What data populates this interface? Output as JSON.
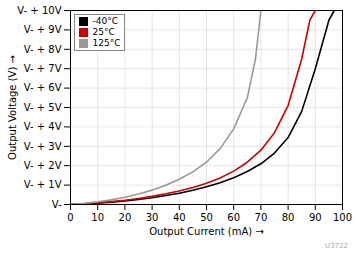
{
  "chart_data": {
    "type": "line",
    "xlabel": "Output Current (mA)",
    "ylabel": "Output Voltage (V)",
    "xlim": [
      0,
      100
    ],
    "ylim": [
      0,
      10
    ],
    "xticks": [
      0,
      10,
      20,
      30,
      40,
      50,
      60,
      70,
      80,
      90,
      100
    ],
    "yticks": [
      {
        "value": 0,
        "label": "V-"
      },
      {
        "value": 1,
        "label": "V- + 1V"
      },
      {
        "value": 2,
        "label": "V- + 2V"
      },
      {
        "value": 3,
        "label": "V- + 3V"
      },
      {
        "value": 4,
        "label": "V- + 4V"
      },
      {
        "value": 5,
        "label": "V- + 5V"
      },
      {
        "value": 6,
        "label": "V- + 6V"
      },
      {
        "value": 7,
        "label": "V- + 7V"
      },
      {
        "value": 8,
        "label": "V- + 8V"
      },
      {
        "value": 9,
        "label": "V- + 9V"
      },
      {
        "value": 10,
        "label": "V- + 10V"
      }
    ],
    "grid": true,
    "legend": "upper left",
    "annotations": [
      "U3722"
    ],
    "series": [
      {
        "name": "-40°C",
        "color": "#000000",
        "x": [
          0,
          5,
          10,
          15,
          20,
          25,
          30,
          35,
          40,
          45,
          50,
          55,
          60,
          65,
          70,
          75,
          80,
          85,
          90,
          95,
          97
        ],
        "values": [
          0,
          0.03,
          0.07,
          0.12,
          0.18,
          0.26,
          0.35,
          0.46,
          0.58,
          0.73,
          0.91,
          1.12,
          1.38,
          1.7,
          2.1,
          2.65,
          3.45,
          4.8,
          7.0,
          9.5,
          10.0
        ]
      },
      {
        "name": "25°C",
        "color": "#cc0000",
        "x": [
          0,
          5,
          10,
          15,
          20,
          25,
          30,
          35,
          40,
          45,
          50,
          55,
          60,
          65,
          70,
          75,
          80,
          85,
          88,
          90
        ],
        "values": [
          0,
          0.04,
          0.09,
          0.15,
          0.22,
          0.31,
          0.42,
          0.55,
          0.7,
          0.88,
          1.1,
          1.37,
          1.72,
          2.18,
          2.8,
          3.7,
          5.1,
          7.5,
          9.5,
          10.0
        ]
      },
      {
        "name": "125°C",
        "color": "#999999",
        "x": [
          0,
          5,
          10,
          15,
          20,
          25,
          30,
          35,
          40,
          45,
          50,
          55,
          60,
          65,
          68,
          70
        ],
        "values": [
          0,
          0.06,
          0.14,
          0.24,
          0.37,
          0.54,
          0.74,
          0.99,
          1.3,
          1.68,
          2.18,
          2.88,
          3.9,
          5.5,
          7.5,
          10.0
        ]
      }
    ]
  }
}
